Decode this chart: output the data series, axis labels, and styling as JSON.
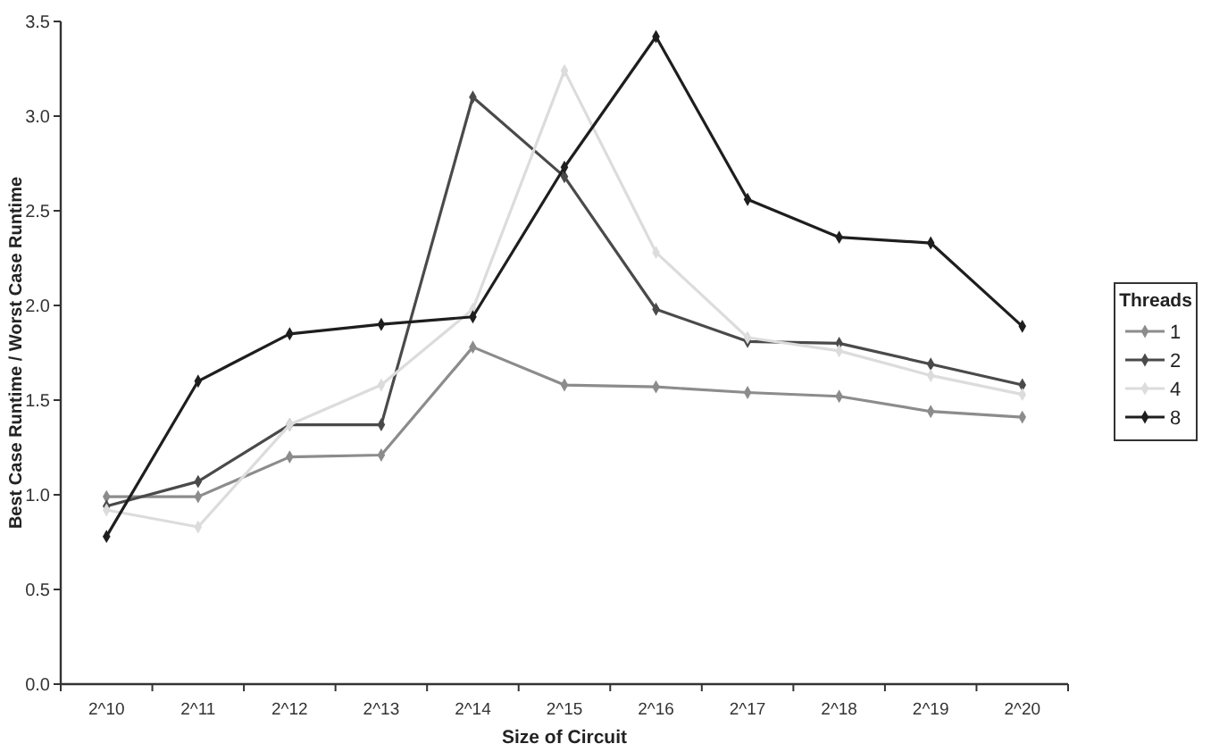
{
  "chart_data": {
    "type": "line",
    "xlabel": "Size of Circuit",
    "ylabel": "Best Case Runtime / Worst Case Runtime",
    "legend_title": "Threads",
    "categories": [
      "2^10",
      "2^11",
      "2^12",
      "2^13",
      "2^14",
      "2^15",
      "2^16",
      "2^17",
      "2^18",
      "2^19",
      "2^20"
    ],
    "series": [
      {
        "name": "1",
        "color": "#8c8c8c",
        "values": [
          0.99,
          0.99,
          1.2,
          1.21,
          1.78,
          1.58,
          1.57,
          1.54,
          1.52,
          1.44,
          1.41
        ]
      },
      {
        "name": "2",
        "color": "#4a4a4a",
        "values": [
          0.94,
          1.07,
          1.37,
          1.37,
          3.1,
          2.68,
          1.98,
          1.81,
          1.8,
          1.69,
          1.58
        ]
      },
      {
        "name": "4",
        "color": "#dcdcdc",
        "values": [
          0.92,
          0.83,
          1.37,
          1.58,
          1.98,
          3.24,
          2.28,
          1.83,
          1.76,
          1.63,
          1.53
        ]
      },
      {
        "name": "8",
        "color": "#1e1e1e",
        "values": [
          0.78,
          1.6,
          1.85,
          1.9,
          1.94,
          2.73,
          3.42,
          2.56,
          2.36,
          2.33,
          1.89
        ]
      }
    ],
    "ylim": [
      0,
      3.5
    ],
    "yticks": [
      {
        "value": 0,
        "label": "0.0"
      },
      {
        "value": 0.5,
        "label": "0.5"
      },
      {
        "value": 1,
        "label": "1.0"
      },
      {
        "value": 1.5,
        "label": "1.5"
      },
      {
        "value": 2,
        "label": "2.0"
      },
      {
        "value": 2.5,
        "label": "2.5"
      },
      {
        "value": 3,
        "label": "3.0"
      },
      {
        "value": 3.5,
        "label": "3.5"
      }
    ],
    "legend": "right",
    "marker": "diamond",
    "line_style": "solid"
  }
}
